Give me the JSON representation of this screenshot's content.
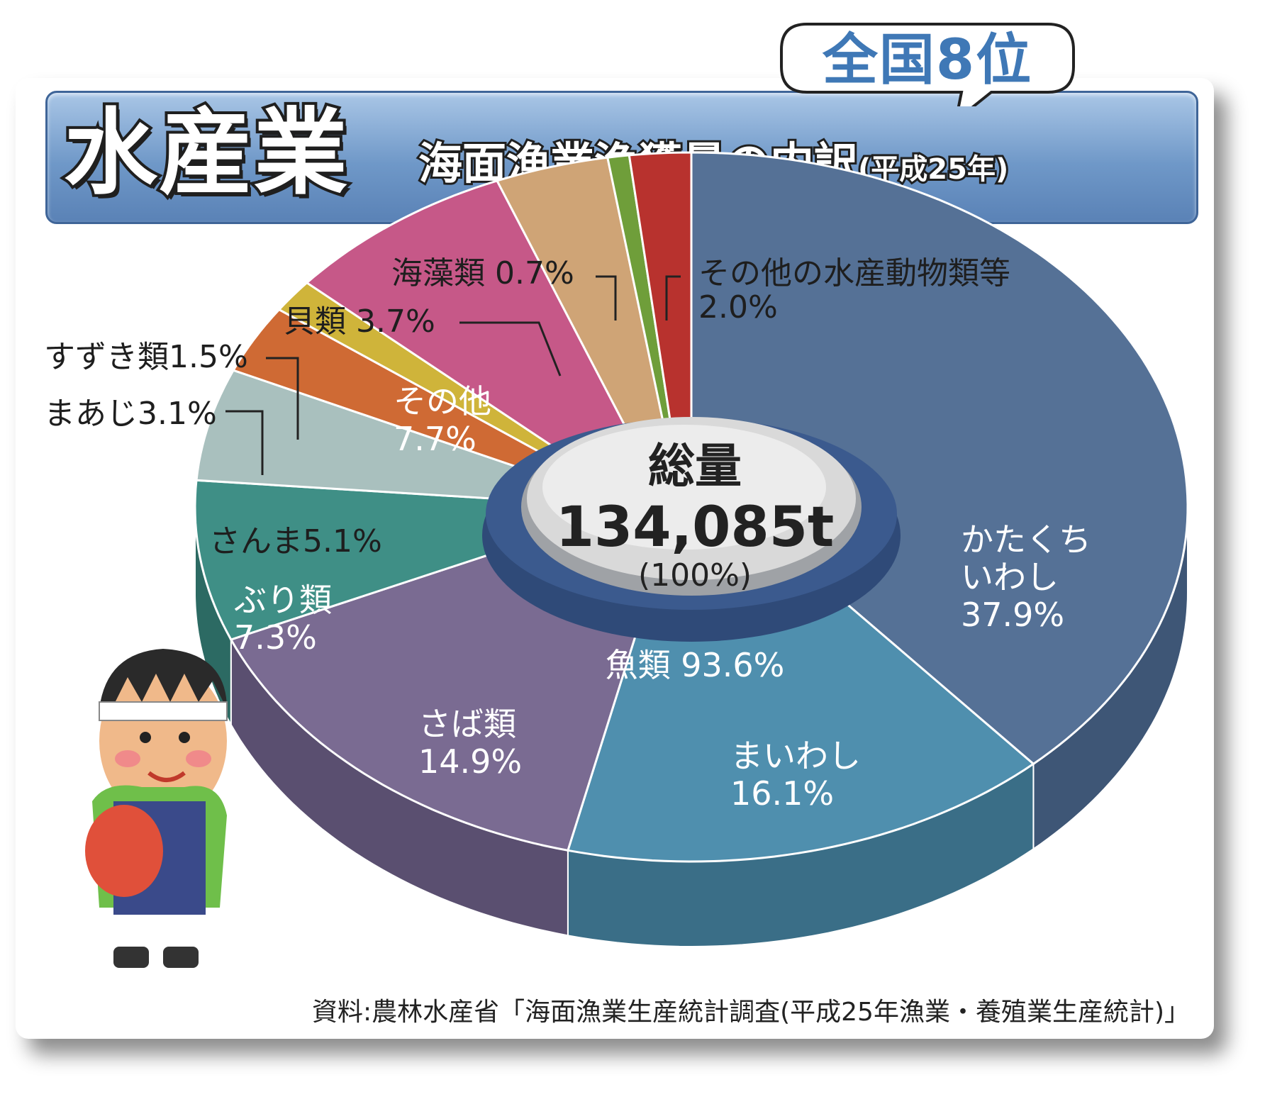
{
  "header": {
    "title": "水産業",
    "subtitle": "海面漁業漁獲量の内訳",
    "year": "(平成25年)",
    "rank": "全国8位"
  },
  "center": {
    "label": "総量",
    "total": "134,085t",
    "percent": "(100%)",
    "group_label": "魚類 93.6%"
  },
  "source": "資料:農林水産省「海面漁業生産統計調査(平成25年漁業・養殖業生産統計)」",
  "labels": {
    "katakuchi": [
      "かたくち",
      "いわし",
      "37.9%"
    ],
    "maiwashi": [
      "まいわし",
      "16.1%"
    ],
    "saba": [
      "さば類",
      "14.9%"
    ],
    "buri": [
      "ぶり類",
      "7.3%"
    ],
    "sanma": "さんま5.1%",
    "maaji": "まあじ3.1%",
    "suzuki": "すずき類1.5%",
    "sonota": [
      "その他",
      "7.7%"
    ],
    "kai": "貝類 3.7%",
    "kaiso": "海藻類 0.7%",
    "other_animals": [
      "その他の水産動物類等",
      "2.0%"
    ]
  },
  "chart_data": {
    "type": "pie",
    "title": "海面漁業漁獲量の内訳(平成25年)",
    "total": "134,085t",
    "categories": [
      "かたくちいわし",
      "まいわし",
      "さば類",
      "ぶり類",
      "さんま",
      "まあじ",
      "すずき類",
      "その他",
      "貝類",
      "海藻類",
      "その他の水産動物類等"
    ],
    "values": [
      37.9,
      16.1,
      14.9,
      7.3,
      5.1,
      3.1,
      1.5,
      7.7,
      3.7,
      0.7,
      2.0
    ],
    "colors": [
      "#557196",
      "#4f8fae",
      "#7a6b92",
      "#3f8f86",
      "#a9c0be",
      "#cf6a34",
      "#cfb43a",
      "#c65888",
      "#cfa476",
      "#6f9e3a",
      "#b8322e"
    ],
    "side_colors": [
      "#3e5676",
      "#3a6e87",
      "#5a4f70",
      "#2c6a63",
      "#7f9492",
      "#9e4f25",
      "#9e8a2a",
      "#954167",
      "#9e7a55",
      "#517528",
      "#87231f"
    ],
    "group": {
      "label": "魚類",
      "percent": 93.6
    }
  }
}
